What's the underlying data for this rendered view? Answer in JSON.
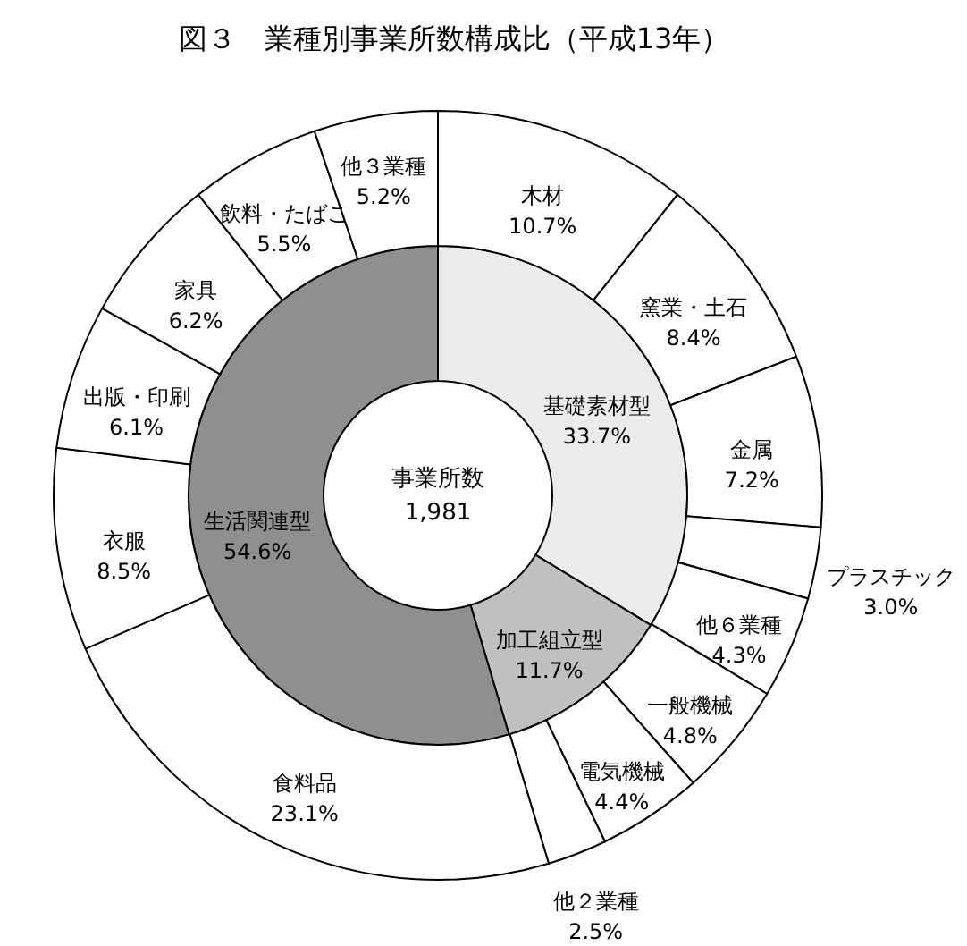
{
  "chart_data": [
    {
      "type": "donut",
      "title": "図３　業種別事業所数構成比（平成13年）",
      "annotations": [
        "事業所数",
        "1,981"
      ],
      "categories": [
        "基礎素材型",
        "加工組立型",
        "生活関連型"
      ],
      "values": [
        33.7,
        11.7,
        54.6
      ],
      "colors": [
        "#ebebeb",
        "#c0c0c0",
        "#8f8f8f"
      ],
      "value_labels": [
        "33.7%",
        "11.7%",
        "54.6%"
      ]
    },
    {
      "type": "donut",
      "categories": [
        "木材",
        "窯業・土石",
        "金属",
        "プラスチック",
        "他６業種",
        "一般機械",
        "電気機械",
        "他２業種",
        "食料品",
        "衣服",
        "出版・印刷",
        "家具",
        "飲料・たばこ",
        "他３業種"
      ],
      "values": [
        10.7,
        8.4,
        7.2,
        3.0,
        4.3,
        4.8,
        4.4,
        2.5,
        23.1,
        8.5,
        6.1,
        6.2,
        5.5,
        5.2
      ],
      "colors": [
        "#ffffff",
        "#ffffff",
        "#ffffff",
        "#ffffff",
        "#ffffff",
        "#ffffff",
        "#ffffff",
        "#ffffff",
        "#ffffff",
        "#ffffff",
        "#ffffff",
        "#ffffff",
        "#ffffff",
        "#ffffff"
      ],
      "value_labels": [
        "10.7%",
        "8.4%",
        "7.2%",
        "3.0%",
        "4.3%",
        "4.8%",
        "4.4%",
        "2.5%",
        "23.1%",
        "8.5%",
        "6.1%",
        "6.2%",
        "5.5%",
        "5.2%"
      ]
    }
  ]
}
